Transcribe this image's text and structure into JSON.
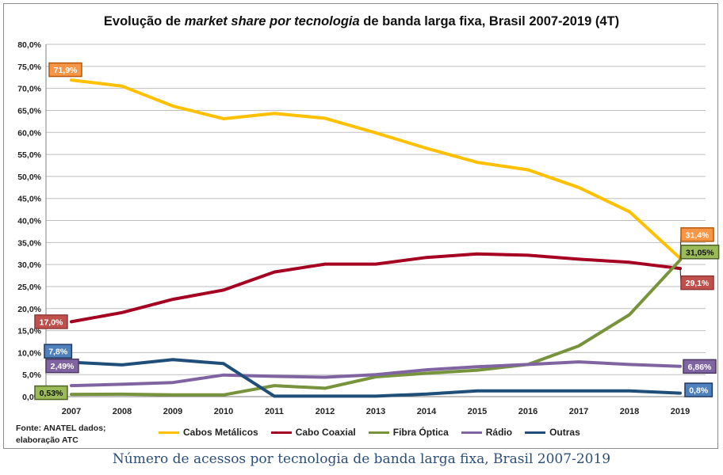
{
  "title": {
    "prefix": "Evolução de ",
    "italic": "market share por tecnologia",
    "suffix": " de banda larga fixa, Brasil 2007-2019 (4T)"
  },
  "source_note": {
    "line1": "Fonte: ANATEL dados;",
    "line2": "elaboração ATC"
  },
  "caption": "Número de acessos por tecnologia de banda larga fixa, Brasil 2007-2019",
  "chart_data": {
    "type": "line",
    "title": "Evolução de market share por tecnologia de banda larga fixa, Brasil 2007-2019 (4T)",
    "xlabel": "",
    "ylabel": "",
    "categories": [
      "2007",
      "2008",
      "2009",
      "2010",
      "2011",
      "2012",
      "2013",
      "2014",
      "2015",
      "2016",
      "2017",
      "2018",
      "2019"
    ],
    "ylim": [
      0,
      80
    ],
    "ytick_step": 5,
    "ytick_labels": [
      "0,0%",
      "5,0%",
      "10,0%",
      "15,0%",
      "20,0%",
      "25,0%",
      "30,0%",
      "35,0%",
      "40,0%",
      "45,0%",
      "50,0%",
      "55,0%",
      "60,0%",
      "65,0%",
      "70,0%",
      "75,0%",
      "80,0%"
    ],
    "grid": true,
    "legend_position": "bottom",
    "series": [
      {
        "name": "Cabos Metálicos",
        "color": "#ffc000",
        "values": [
          71.9,
          70.5,
          66.0,
          63.1,
          64.3,
          63.2,
          59.9,
          56.4,
          53.2,
          51.5,
          47.5,
          42.0,
          31.4
        ],
        "labels": [
          {
            "index": 0,
            "text": "71,9%",
            "fill": "#f79646",
            "stroke": "#b65708"
          },
          {
            "index": 12,
            "text": "31,4%",
            "fill": "#f79646",
            "stroke": "#b65708"
          }
        ]
      },
      {
        "name": "Cabo Coaxial",
        "color": "#a50021",
        "values": [
          17.0,
          19.1,
          22.1,
          24.2,
          28.3,
          30.1,
          30.1,
          31.6,
          32.4,
          32.1,
          31.2,
          30.5,
          29.1
        ],
        "labels": [
          {
            "index": 0,
            "text": "17,0%",
            "fill": "#c0504d",
            "stroke": "#8c3836"
          },
          {
            "index": 12,
            "text": "29,1%",
            "fill": "#c0504d",
            "stroke": "#8c3836"
          }
        ]
      },
      {
        "name": "Fibra Óptica",
        "color": "#77933c",
        "values": [
          0.53,
          0.55,
          0.4,
          0.4,
          2.5,
          1.9,
          4.5,
          5.3,
          6.0,
          7.3,
          11.5,
          18.6,
          31.05
        ],
        "labels": [
          {
            "index": 0,
            "text": "0,53%",
            "fill": "#9bbb59",
            "stroke": "#4f6228"
          },
          {
            "index": 12,
            "text": "31,05%",
            "fill": "#9bbb59",
            "stroke": "#4f6228"
          }
        ]
      },
      {
        "name": "Rádio",
        "color": "#8064a2",
        "values": [
          2.49,
          2.8,
          3.2,
          4.9,
          4.6,
          4.4,
          5.0,
          6.1,
          6.8,
          7.3,
          7.9,
          7.3,
          6.86
        ],
        "labels": [
          {
            "index": 0,
            "text": "2,49%",
            "fill": "#8064a2",
            "stroke": "#4b3863"
          },
          {
            "index": 12,
            "text": "6,86%",
            "fill": "#8064a2",
            "stroke": "#4b3863"
          }
        ]
      },
      {
        "name": "Outras",
        "color": "#1f4e79",
        "values": [
          7.8,
          7.2,
          8.4,
          7.5,
          0.1,
          0.1,
          0.1,
          0.6,
          1.3,
          1.3,
          1.3,
          1.3,
          0.8
        ],
        "labels": [
          {
            "index": 0,
            "text": "7,8%",
            "fill": "#4f81bd",
            "stroke": "#1f3864"
          },
          {
            "index": 12,
            "text": "0,8%",
            "fill": "#4f81bd",
            "stroke": "#1f3864"
          }
        ]
      }
    ]
  }
}
